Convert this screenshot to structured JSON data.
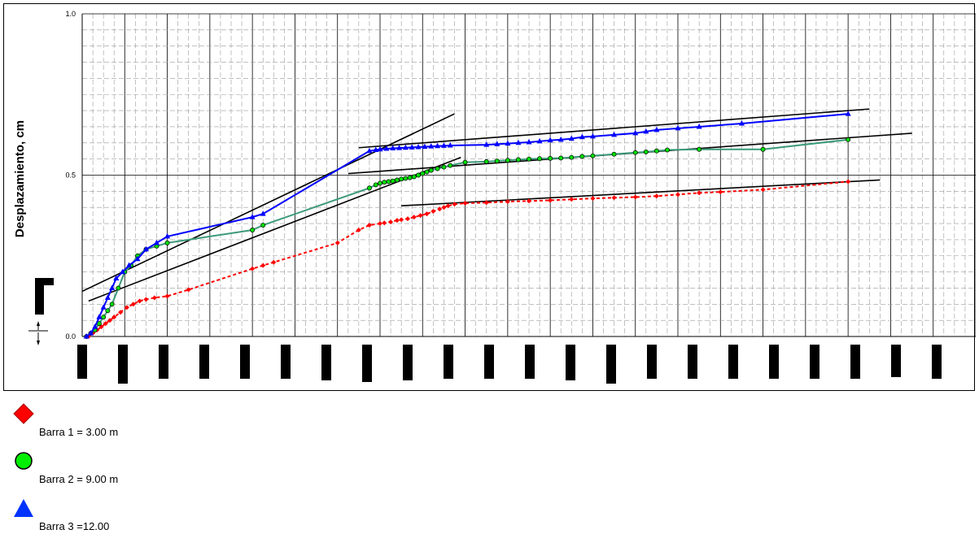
{
  "chart_data": {
    "type": "line",
    "ylabel": "Desplazamiento, cm",
    "yticks": [
      "0.0",
      "0.5",
      "1.0"
    ],
    "ylim": [
      0,
      1
    ],
    "xlim": [
      0,
      42
    ],
    "grid": true,
    "legend_position": "bottom-left",
    "series": [
      {
        "name": "Barra 1 = 3.00 m",
        "color": "#ff0000",
        "marker": "diamond",
        "line_style": "dotted",
        "x": [
          0.3,
          0.5,
          0.7,
          0.9,
          1.1,
          1.3,
          1.5,
          1.8,
          2.1,
          2.4,
          2.7,
          3.0,
          3.4,
          4.0,
          5.0,
          8.0,
          8.5,
          9.0,
          12.0,
          13.0,
          13.5,
          14.0,
          14.2,
          14.5,
          14.8,
          15.0,
          15.3,
          15.6,
          15.9,
          16.2,
          16.5,
          16.8,
          17.0,
          17.2,
          17.5,
          18.0,
          19.0,
          20.0,
          21.0,
          22.0,
          23.0,
          24.0,
          25.0,
          26.0,
          27.0,
          28.0,
          29.0,
          30.0,
          32.0,
          36.0
        ],
        "y": [
          0.0,
          0.01,
          0.02,
          0.03,
          0.04,
          0.05,
          0.06,
          0.075,
          0.09,
          0.1,
          0.11,
          0.115,
          0.12,
          0.125,
          0.145,
          0.21,
          0.22,
          0.23,
          0.29,
          0.33,
          0.345,
          0.35,
          0.352,
          0.355,
          0.36,
          0.362,
          0.365,
          0.37,
          0.375,
          0.38,
          0.388,
          0.395,
          0.4,
          0.405,
          0.41,
          0.413,
          0.415,
          0.418,
          0.42,
          0.422,
          0.425,
          0.428,
          0.43,
          0.432,
          0.435,
          0.44,
          0.445,
          0.448,
          0.455,
          0.48
        ]
      },
      {
        "name": "Barra 2 = 9.00 m",
        "color": "#00e000",
        "line_color": "#3c9a78",
        "marker": "circle",
        "line_style": "solid",
        "x": [
          0.2,
          0.4,
          0.6,
          0.8,
          1.0,
          1.2,
          1.4,
          1.7,
          2.0,
          2.3,
          2.6,
          3.0,
          3.5,
          4.0,
          8.0,
          8.5,
          13.5,
          13.8,
          14.0,
          14.2,
          14.4,
          14.6,
          14.8,
          15.0,
          15.2,
          15.4,
          15.6,
          15.8,
          16.0,
          16.2,
          16.4,
          16.7,
          17.0,
          17.3,
          18.0,
          19.0,
          19.5,
          20.0,
          20.5,
          21.0,
          21.5,
          22.0,
          22.5,
          23.0,
          23.5,
          24.0,
          25.0,
          26.0,
          26.5,
          27.0,
          27.5,
          29.0,
          32.0,
          36.0
        ],
        "y": [
          0.0,
          0.01,
          0.02,
          0.04,
          0.06,
          0.08,
          0.1,
          0.15,
          0.2,
          0.22,
          0.25,
          0.27,
          0.28,
          0.29,
          0.33,
          0.345,
          0.46,
          0.47,
          0.475,
          0.478,
          0.48,
          0.482,
          0.485,
          0.488,
          0.49,
          0.492,
          0.495,
          0.5,
          0.505,
          0.51,
          0.515,
          0.52,
          0.525,
          0.53,
          0.54,
          0.542,
          0.544,
          0.546,
          0.548,
          0.55,
          0.551,
          0.552,
          0.553,
          0.555,
          0.558,
          0.56,
          0.565,
          0.57,
          0.572,
          0.575,
          0.578,
          0.58,
          0.58,
          0.61
        ]
      },
      {
        "name": "Barra 3 =12.00",
        "color": "#0000ff",
        "marker": "triangle",
        "line_style": "solid",
        "x": [
          0.2,
          0.4,
          0.6,
          0.8,
          1.0,
          1.2,
          1.4,
          1.6,
          1.9,
          2.2,
          2.6,
          3.0,
          3.5,
          4.0,
          8.0,
          8.5,
          13.5,
          13.8,
          14.0,
          14.3,
          14.6,
          14.9,
          15.2,
          15.5,
          15.8,
          16.1,
          16.4,
          16.7,
          17.0,
          17.3,
          19.0,
          19.5,
          20.0,
          20.5,
          21.0,
          21.5,
          22.0,
          22.5,
          23.0,
          23.5,
          24.0,
          25.0,
          26.0,
          26.5,
          27.0,
          28.0,
          29.0,
          31.0,
          36.0
        ],
        "y": [
          0.0,
          0.01,
          0.03,
          0.06,
          0.09,
          0.12,
          0.15,
          0.18,
          0.2,
          0.22,
          0.24,
          0.27,
          0.29,
          0.31,
          0.37,
          0.38,
          0.575,
          0.578,
          0.58,
          0.582,
          0.583,
          0.584,
          0.585,
          0.586,
          0.587,
          0.588,
          0.589,
          0.59,
          0.591,
          0.592,
          0.594,
          0.596,
          0.598,
          0.6,
          0.602,
          0.605,
          0.608,
          0.61,
          0.613,
          0.618,
          0.62,
          0.625,
          0.63,
          0.635,
          0.64,
          0.645,
          0.65,
          0.66,
          0.69
        ]
      }
    ],
    "reference_lines": [
      {
        "x1": 0.0,
        "y1": 0.14,
        "x2": 17.5,
        "y2": 0.69
      },
      {
        "x1": 0.3,
        "y1": 0.11,
        "x2": 17.8,
        "y2": 0.555
      },
      {
        "x1": 12.5,
        "y1": 0.505,
        "x2": 39.0,
        "y2": 0.63
      },
      {
        "x1": 13.0,
        "y1": 0.585,
        "x2": 37.0,
        "y2": 0.705
      },
      {
        "x1": 15.0,
        "y1": 0.405,
        "x2": 37.5,
        "y2": 0.485
      }
    ]
  }
}
